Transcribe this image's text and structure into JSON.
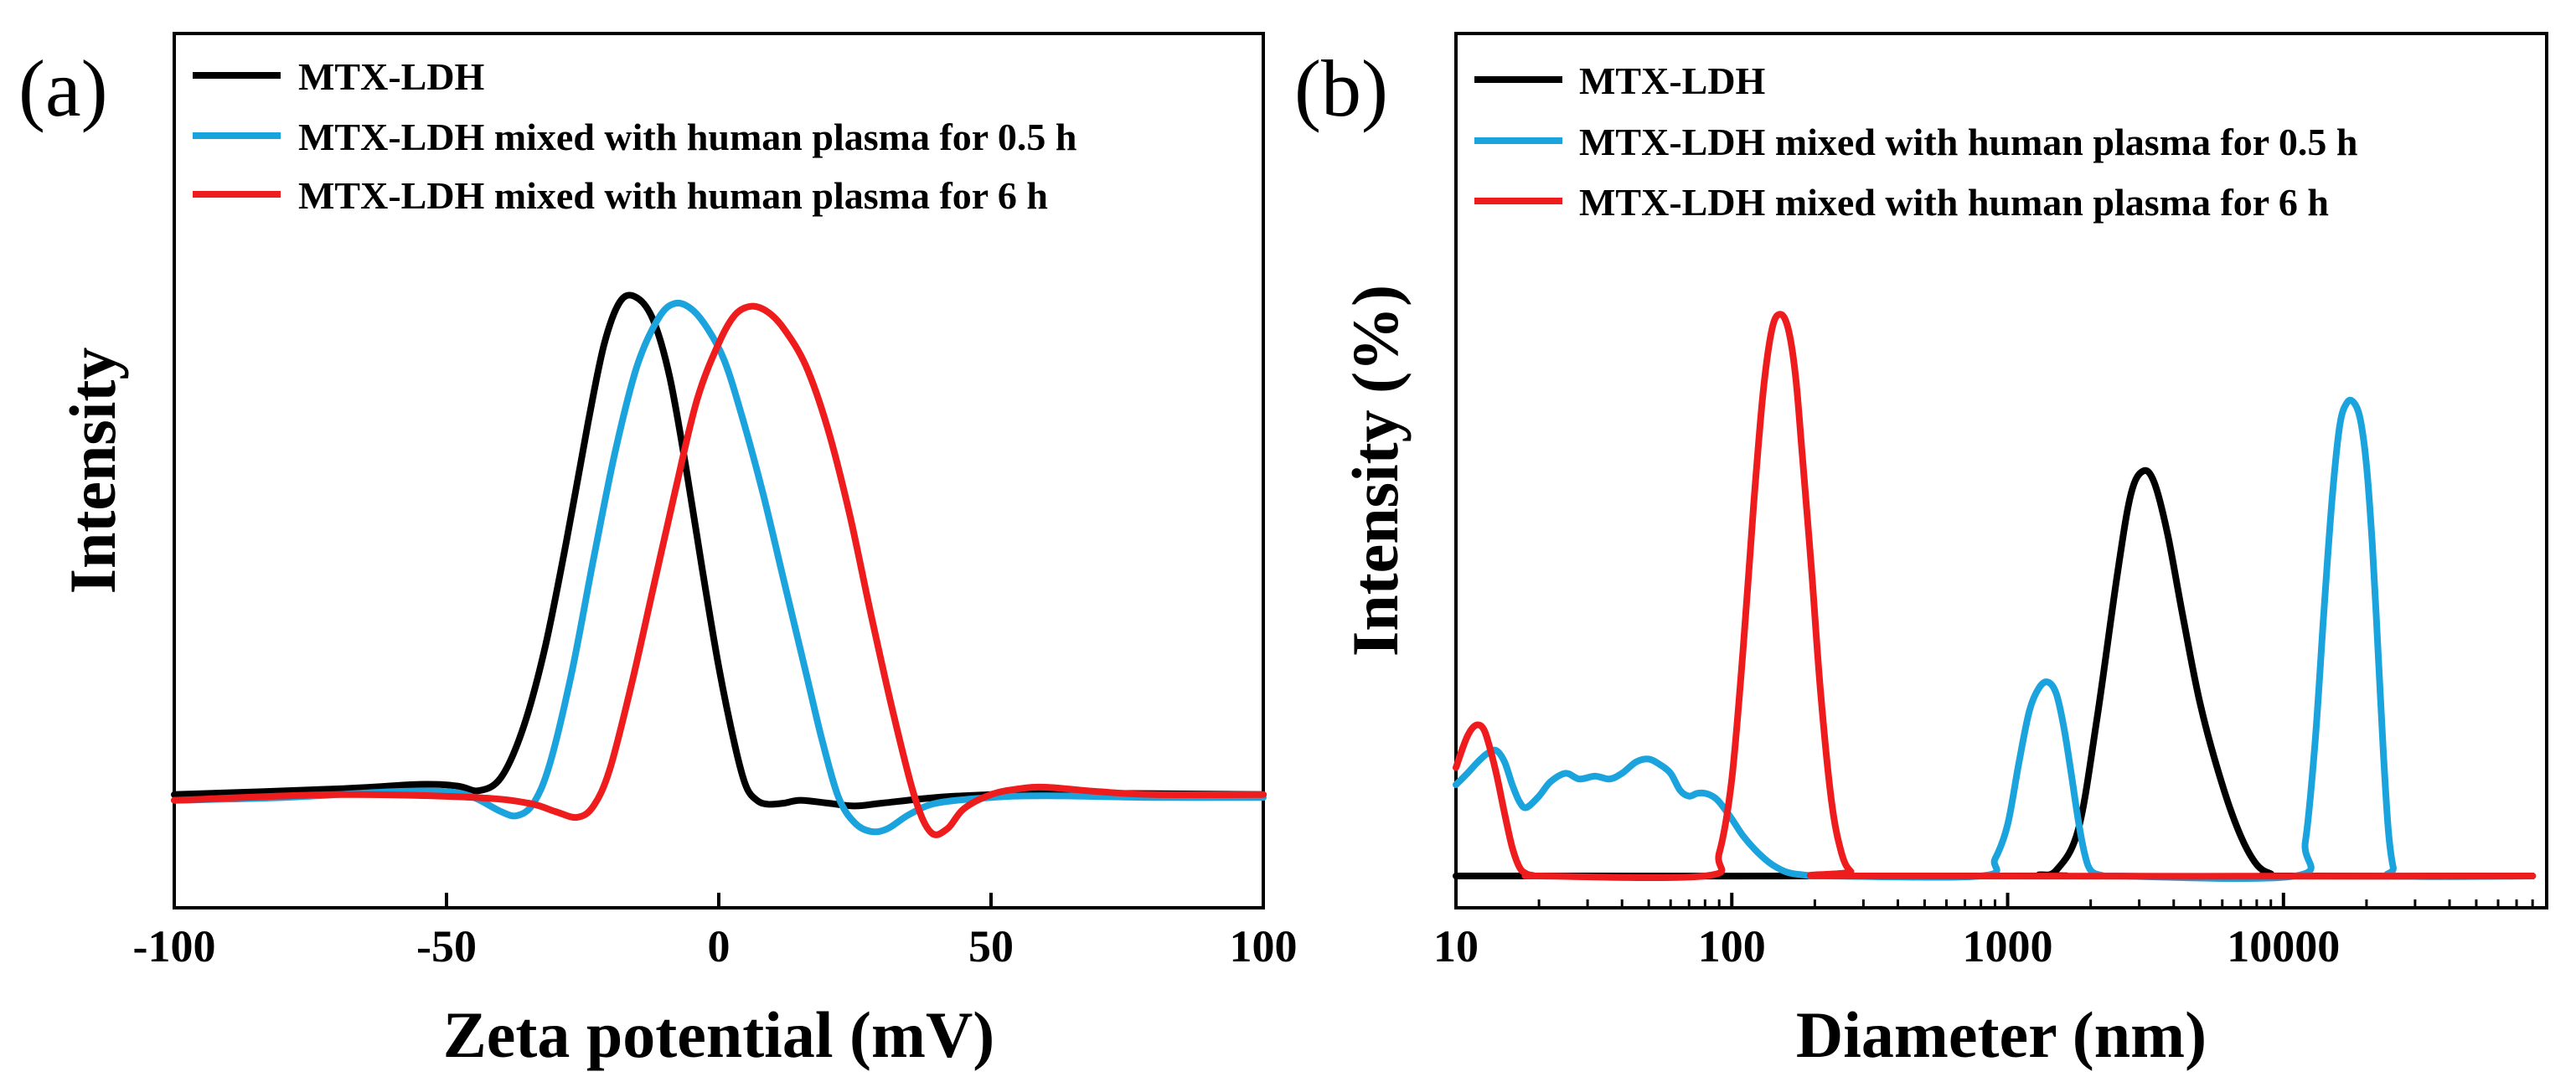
{
  "chart_data": [
    {
      "panel_label": "(a)",
      "type": "line",
      "xlabel": "Zeta potential (mV)",
      "ylabel": "Intensity",
      "xlim": [
        -100,
        100
      ],
      "ylim": [
        0,
        1
      ],
      "xticks": [
        -100,
        -50,
        0,
        50,
        100
      ],
      "legend_position": "top-left",
      "series": [
        {
          "name": "MTX-LDH",
          "color": "#000000",
          "x": [
            -100,
            -70,
            -55,
            -48,
            -44,
            -40,
            -36,
            -32,
            -28,
            -24,
            -21,
            -18,
            -15,
            -12,
            -9,
            -6,
            -3,
            0,
            3,
            5,
            7,
            9,
            12,
            15,
            20,
            25,
            30,
            40,
            50,
            60,
            100
          ],
          "y": [
            0.105,
            0.115,
            0.123,
            0.12,
            0.112,
            0.135,
            0.22,
            0.36,
            0.55,
            0.76,
            0.9,
            0.975,
            0.98,
            0.94,
            0.84,
            0.68,
            0.5,
            0.33,
            0.19,
            0.12,
            0.095,
            0.088,
            0.09,
            0.095,
            0.09,
            0.085,
            0.09,
            0.1,
            0.105,
            0.108,
            0.105
          ]
        },
        {
          "name": "MTX-LDH mixed with human plasma for 0.5 h",
          "color": "#1aa3dc",
          "x": [
            -100,
            -80,
            -60,
            -50,
            -45,
            -40,
            -37,
            -34,
            -31,
            -27,
            -23,
            -19,
            -15,
            -11,
            -8,
            -5,
            -2,
            1,
            4,
            8,
            12,
            16,
            19,
            22,
            25,
            28,
            31,
            35,
            40,
            50,
            60,
            80,
            100
          ],
          "y": [
            0.095,
            0.1,
            0.11,
            0.11,
            0.1,
            0.075,
            0.068,
            0.09,
            0.16,
            0.32,
            0.52,
            0.71,
            0.86,
            0.945,
            0.97,
            0.96,
            0.925,
            0.87,
            0.78,
            0.64,
            0.48,
            0.32,
            0.2,
            0.1,
            0.055,
            0.04,
            0.045,
            0.07,
            0.09,
            0.1,
            0.103,
            0.1,
            0.1
          ]
        },
        {
          "name": "MTX-LDH mixed with human plasma for 6 h",
          "color": "#ee1c1c",
          "x": [
            -100,
            -70,
            -45,
            -35,
            -30,
            -26,
            -23,
            -20,
            -16,
            -12,
            -8,
            -4,
            0,
            3,
            6,
            9,
            12,
            16,
            20,
            24,
            28,
            32,
            36,
            39,
            42,
            45,
            50,
            55,
            60,
            70,
            80,
            100
          ],
          "y": [
            0.095,
            0.105,
            0.1,
            0.09,
            0.075,
            0.065,
            0.085,
            0.15,
            0.3,
            0.47,
            0.64,
            0.8,
            0.9,
            0.95,
            0.965,
            0.955,
            0.925,
            0.86,
            0.75,
            0.6,
            0.42,
            0.25,
            0.1,
            0.038,
            0.045,
            0.08,
            0.105,
            0.115,
            0.118,
            0.11,
            0.105,
            0.105
          ]
        }
      ]
    },
    {
      "panel_label": "(b)",
      "type": "line",
      "xscale": "log",
      "xlabel": "Diameter (nm)",
      "ylabel": "Intensity (%)",
      "xlim": [
        10,
        90000
      ],
      "ylim": [
        0,
        1
      ],
      "xticks": [
        10,
        100,
        1000,
        10000
      ],
      "xtick_labels": [
        "10",
        "100",
        "1000",
        "10000"
      ],
      "legend_position": "top-left",
      "series": [
        {
          "name": "MTX-LDH",
          "color": "#000000",
          "x": [
            10,
            1100,
            1300,
            1500,
            1800,
            2100,
            2500,
            2800,
            3100,
            3400,
            3800,
            4300,
            5000,
            6000,
            7000,
            8000,
            9000,
            10000,
            80000
          ],
          "y": [
            0,
            0,
            0.002,
            0.01,
            0.08,
            0.27,
            0.53,
            0.67,
            0.71,
            0.69,
            0.6,
            0.46,
            0.3,
            0.16,
            0.07,
            0.02,
            0.004,
            0,
            0
          ]
        },
        {
          "name": "MTX-LDH mixed with human plasma for 0.5 h",
          "color": "#1aa3dc",
          "x": [
            10,
            11,
            12,
            13,
            14,
            15,
            16,
            17,
            18,
            20,
            22,
            25,
            28,
            32,
            36,
            40,
            45,
            50,
            55,
            60,
            65,
            70,
            75,
            80,
            85,
            90,
            100,
            110,
            125,
            140,
            160,
            190,
            220,
            800,
            900,
            1000,
            1100,
            1200,
            1300,
            1400,
            1500,
            1600,
            1700,
            1800,
            1900,
            2000,
            2200,
            2500,
            11000,
            12000,
            13000,
            14000,
            15000,
            16000,
            17000,
            18000,
            19000,
            20000,
            21000,
            22000,
            23000,
            24000,
            25000,
            26000,
            80000
          ],
          "y": [
            0.16,
            0.18,
            0.2,
            0.215,
            0.22,
            0.2,
            0.16,
            0.13,
            0.12,
            0.14,
            0.165,
            0.18,
            0.17,
            0.175,
            0.17,
            0.18,
            0.2,
            0.205,
            0.195,
            0.18,
            0.15,
            0.14,
            0.145,
            0.145,
            0.14,
            0.13,
            0.1,
            0.07,
            0.04,
            0.02,
            0.006,
            0.001,
            0,
            0,
            0.03,
            0.09,
            0.2,
            0.29,
            0.33,
            0.34,
            0.32,
            0.26,
            0.18,
            0.1,
            0.04,
            0.01,
            0.001,
            0,
            0,
            0.06,
            0.23,
            0.46,
            0.66,
            0.79,
            0.83,
            0.83,
            0.8,
            0.72,
            0.58,
            0.4,
            0.22,
            0.08,
            0.015,
            0,
            0
          ]
        },
        {
          "name": "MTX-LDH mixed with human plasma for 6 h",
          "color": "#ee1c1c",
          "x": [
            10,
            10.5,
            11,
            11.5,
            12,
            12.5,
            13,
            14,
            15,
            16,
            17,
            18,
            19,
            20,
            80,
            90,
            100,
            110,
            120,
            130,
            140,
            150,
            160,
            170,
            180,
            195,
            210,
            230,
            250,
            270,
            300,
            80000
          ],
          "y": [
            0.19,
            0.22,
            0.245,
            0.26,
            0.265,
            0.26,
            0.24,
            0.18,
            0.11,
            0.05,
            0.015,
            0.004,
            0.001,
            0,
            0,
            0.04,
            0.17,
            0.4,
            0.65,
            0.85,
            0.96,
            0.985,
            0.96,
            0.88,
            0.74,
            0.53,
            0.32,
            0.13,
            0.04,
            0.008,
            0,
            0
          ]
        }
      ]
    }
  ]
}
